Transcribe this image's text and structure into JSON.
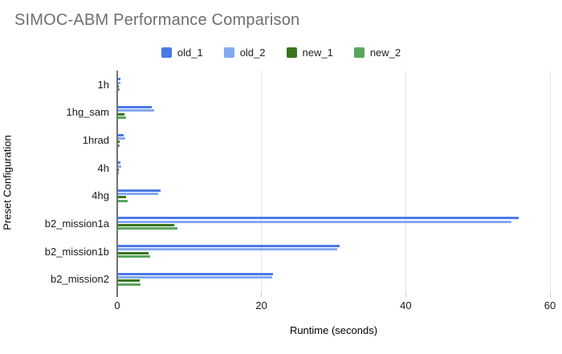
{
  "title": "SIMOC-ABM Performance Comparison",
  "axes": {
    "x_title": "Runtime (seconds)",
    "y_title": "Preset Configuration"
  },
  "chart_data": {
    "type": "bar",
    "orientation": "horizontal",
    "title": "SIMOC-ABM Performance Comparison",
    "xlabel": "Runtime (seconds)",
    "ylabel": "Preset Configuration",
    "xlim": [
      0,
      60
    ],
    "xticks": [
      0,
      20,
      40,
      60
    ],
    "grid": true,
    "legend_position": "top",
    "categories": [
      "1h",
      "1hg_sam",
      "1hrad",
      "4h",
      "4hg",
      "b2_mission1a",
      "b2_mission1b",
      "b2_mission2"
    ],
    "series": [
      {
        "name": "old_1",
        "color": "#4a79e8",
        "values": [
          0.3,
          4.7,
          0.8,
          0.3,
          5.9,
          55.5,
          30.7,
          21.5
        ]
      },
      {
        "name": "old_2",
        "color": "#85a9ee",
        "values": [
          0.3,
          5.0,
          1.0,
          0.4,
          5.6,
          54.6,
          30.4,
          21.4
        ]
      },
      {
        "name": "new_1",
        "color": "#38761d",
        "values": [
          0.1,
          0.9,
          0.2,
          0.1,
          1.1,
          7.8,
          4.2,
          3.0
        ]
      },
      {
        "name": "new_2",
        "color": "#5aa65c",
        "values": [
          0.2,
          1.1,
          0.2,
          0.1,
          1.3,
          8.2,
          4.4,
          3.1
        ]
      }
    ]
  }
}
